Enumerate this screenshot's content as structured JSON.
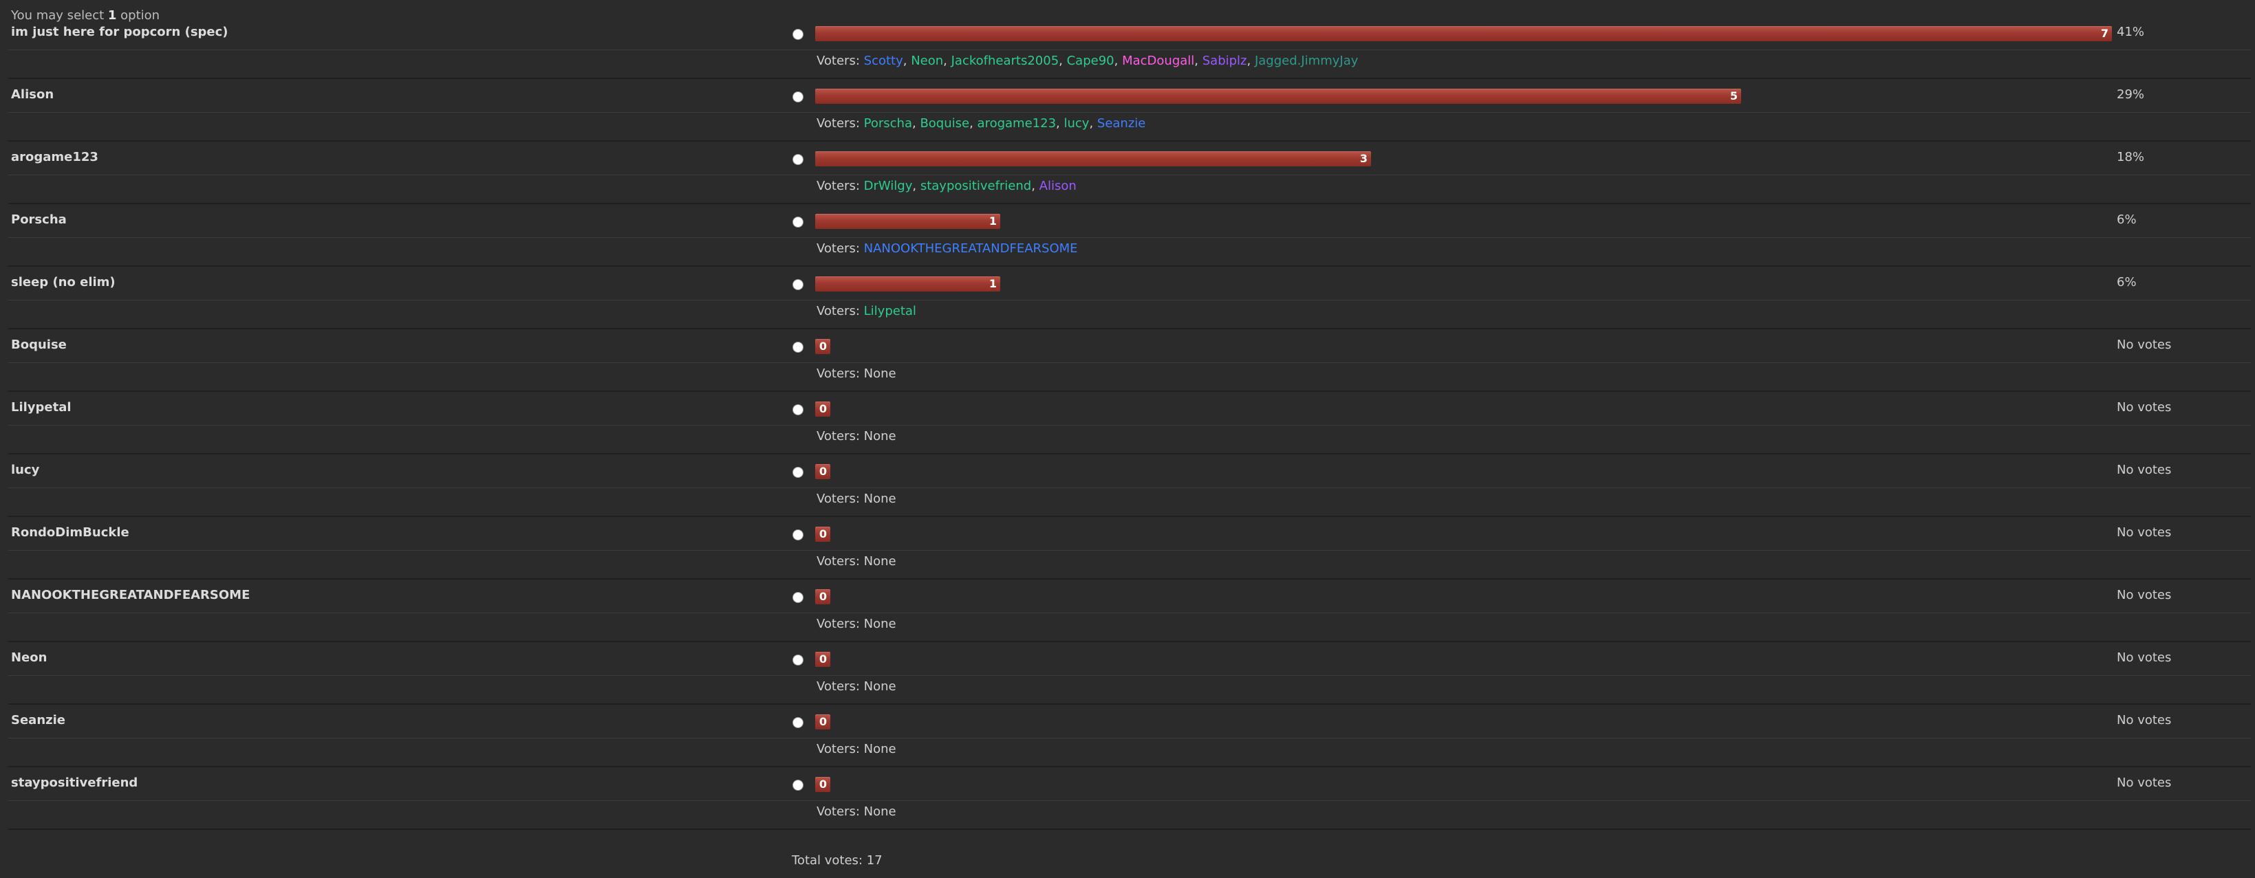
{
  "poll": {
    "select_prefix": "You may select",
    "select_count": "1",
    "select_suffix": "option",
    "voters_label": "Voters:",
    "total_label": "Total votes: 17",
    "max_votes": 7,
    "colors": {
      "bar": "#a8443a",
      "background": "#2b2b2b",
      "blue": "#3f7fff",
      "green": "#2ecc8e",
      "pink": "#ff5ce6",
      "purple": "#9b59ff",
      "teal": "#2d9a8c",
      "gray": "#cfcfcf"
    },
    "options": [
      {
        "name": "im just here for popcorn (spec)",
        "votes": 7,
        "percent": "41%",
        "voters": [
          {
            "name": "Scotty",
            "color": "#3f7fff"
          },
          {
            "name": "Neon",
            "color": "#2ecc8e"
          },
          {
            "name": "Jackofhearts2005",
            "color": "#2ecc8e"
          },
          {
            "name": "Cape90",
            "color": "#2ecc8e"
          },
          {
            "name": "MacDougall",
            "color": "#ff5ce6"
          },
          {
            "name": "Sabiplz",
            "color": "#9b59ff"
          },
          {
            "name": "Jagged.JimmyJay",
            "color": "#2d9a8c"
          }
        ]
      },
      {
        "name": "Alison",
        "votes": 5,
        "percent": "29%",
        "voters": [
          {
            "name": "Porscha",
            "color": "#2ecc8e"
          },
          {
            "name": "Boquise",
            "color": "#2ecc8e"
          },
          {
            "name": "arogame123",
            "color": "#2ecc8e"
          },
          {
            "name": "lucy",
            "color": "#2ecc8e"
          },
          {
            "name": "Seanzie",
            "color": "#3f7fff"
          }
        ]
      },
      {
        "name": "arogame123",
        "votes": 3,
        "percent": "18%",
        "voters": [
          {
            "name": "DrWilgy",
            "color": "#2ecc8e"
          },
          {
            "name": "staypositivefriend",
            "color": "#2ecc8e"
          },
          {
            "name": "Alison",
            "color": "#9b59ff"
          }
        ]
      },
      {
        "name": "Porscha",
        "votes": 1,
        "percent": "6%",
        "voters": [
          {
            "name": "NANOOKTHEGREATANDFEARSOME",
            "color": "#3f7fff"
          }
        ]
      },
      {
        "name": "sleep (no elim)",
        "votes": 1,
        "percent": "6%",
        "voters": [
          {
            "name": "Lilypetal",
            "color": "#2ecc8e"
          }
        ]
      },
      {
        "name": "Boquise",
        "votes": 0,
        "percent": "No votes",
        "voters": [
          {
            "name": "None",
            "color": "#cfcfcf"
          }
        ]
      },
      {
        "name": "Lilypetal",
        "votes": 0,
        "percent": "No votes",
        "voters": [
          {
            "name": "None",
            "color": "#cfcfcf"
          }
        ]
      },
      {
        "name": "lucy",
        "votes": 0,
        "percent": "No votes",
        "voters": [
          {
            "name": "None",
            "color": "#cfcfcf"
          }
        ]
      },
      {
        "name": "RondoDimBuckle",
        "votes": 0,
        "percent": "No votes",
        "voters": [
          {
            "name": "None",
            "color": "#cfcfcf"
          }
        ]
      },
      {
        "name": "NANOOKTHEGREATANDFEARSOME",
        "votes": 0,
        "percent": "No votes",
        "voters": [
          {
            "name": "None",
            "color": "#cfcfcf"
          }
        ]
      },
      {
        "name": "Neon",
        "votes": 0,
        "percent": "No votes",
        "voters": [
          {
            "name": "None",
            "color": "#cfcfcf"
          }
        ]
      },
      {
        "name": "Seanzie",
        "votes": 0,
        "percent": "No votes",
        "voters": [
          {
            "name": "None",
            "color": "#cfcfcf"
          }
        ]
      },
      {
        "name": "staypositivefriend",
        "votes": 0,
        "percent": "No votes",
        "voters": [
          {
            "name": "None",
            "color": "#cfcfcf"
          }
        ]
      }
    ]
  }
}
